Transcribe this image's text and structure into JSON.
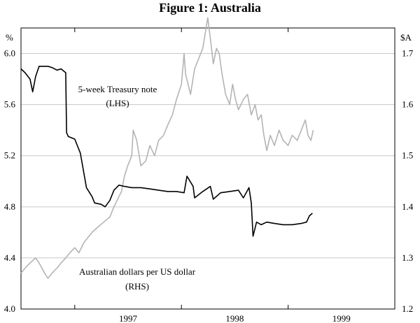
{
  "chart_data": {
    "type": "line",
    "title": "Figure 1: Australia",
    "left_axis": {
      "unit": "%",
      "ylim": [
        4.0,
        6.2
      ],
      "ticks": [
        "4.0",
        "4.4",
        "4.8",
        "5.2",
        "5.6",
        "6.0"
      ]
    },
    "right_axis": {
      "unit": "$A",
      "ylim": [
        1.2,
        1.75
      ],
      "ticks": [
        "1.2",
        "1.3",
        "1.4",
        "1.5",
        "1.6",
        "1.7"
      ]
    },
    "x_labels": [
      "1997",
      "1998",
      "1999"
    ],
    "x_range": [
      "1996-07",
      "2000-01"
    ],
    "grid": "horizontal",
    "annotations": [
      {
        "id": "tn",
        "lines": [
          "5-week Treasury note",
          "(LHS)"
        ]
      },
      {
        "id": "fx",
        "lines": [
          "Australian dollars per US dollar",
          "(RHS)"
        ]
      }
    ],
    "series": [
      {
        "name": "5-week Treasury note (LHS)",
        "axis": "left",
        "color": "#000000",
        "x": [
          "1996-07-01",
          "1996-07-15",
          "1996-08-01",
          "1996-08-10",
          "1996-08-20",
          "1996-09-01",
          "1996-09-15",
          "1996-10-01",
          "1996-10-15",
          "1996-11-01",
          "1996-11-15",
          "1996-12-01",
          "1996-12-04",
          "1996-12-10",
          "1997-01-01",
          "1997-01-20",
          "1997-02-10",
          "1997-03-01",
          "1997-03-10",
          "1997-04-01",
          "1997-04-15",
          "1997-05-01",
          "1997-05-15",
          "1997-06-01",
          "1997-06-20",
          "1997-07-15",
          "1997-08-15",
          "1997-09-15",
          "1997-10-15",
          "1997-11-15",
          "1997-12-15",
          "1998-01-10",
          "1998-01-20",
          "1998-02-10",
          "1998-02-15",
          "1998-03-15",
          "1998-04-10",
          "1998-04-20",
          "1998-05-15",
          "1998-06-15",
          "1998-07-15",
          "1998-08-01",
          "1998-08-20",
          "1998-08-28",
          "1998-09-03",
          "1998-09-15",
          "1998-10-01",
          "1998-10-20",
          "1998-11-15",
          "1998-12-15",
          "1999-01-15",
          "1999-02-15",
          "1999-03-05",
          "1999-03-15",
          "1999-03-25"
        ],
        "values": [
          5.88,
          5.85,
          5.8,
          5.7,
          5.82,
          5.9,
          5.9,
          5.9,
          5.89,
          5.87,
          5.88,
          5.85,
          5.38,
          5.35,
          5.33,
          5.22,
          4.95,
          4.88,
          4.83,
          4.82,
          4.8,
          4.85,
          4.93,
          4.97,
          4.96,
          4.95,
          4.95,
          4.94,
          4.93,
          4.92,
          4.92,
          4.91,
          5.04,
          4.96,
          4.87,
          4.92,
          4.96,
          4.86,
          4.91,
          4.92,
          4.93,
          4.87,
          4.95,
          4.83,
          4.57,
          4.68,
          4.66,
          4.68,
          4.67,
          4.66,
          4.66,
          4.67,
          4.68,
          4.73,
          4.75
        ]
      },
      {
        "name": "Australian dollars per US dollar (RHS)",
        "axis": "right",
        "color": "#b4b4b4",
        "x": [
          "1996-07-01",
          "1996-07-15",
          "1996-08-01",
          "1996-08-20",
          "1996-09-01",
          "1996-09-20",
          "1996-10-01",
          "1996-10-15",
          "1996-11-01",
          "1996-11-15",
          "1996-12-01",
          "1996-12-15",
          "1997-01-01",
          "1997-01-15",
          "1997-02-01",
          "1997-02-15",
          "1997-03-01",
          "1997-03-20",
          "1997-04-10",
          "1997-05-01",
          "1997-05-15",
          "1997-06-01",
          "1997-06-10",
          "1997-06-20",
          "1997-07-01",
          "1997-07-15",
          "1997-07-20",
          "1997-08-01",
          "1997-08-15",
          "1997-09-01",
          "1997-09-15",
          "1997-10-01",
          "1997-10-15",
          "1997-11-01",
          "1997-11-15",
          "1997-12-01",
          "1997-12-15",
          "1998-01-01",
          "1998-01-10",
          "1998-01-15",
          "1998-02-01",
          "1998-02-15",
          "1998-03-01",
          "1998-03-15",
          "1998-04-01",
          "1998-04-10",
          "1998-04-20",
          "1998-05-01",
          "1998-05-10",
          "1998-05-20",
          "1998-06-01",
          "1998-06-15",
          "1998-06-25",
          "1998-07-05",
          "1998-07-15",
          "1998-08-01",
          "1998-08-15",
          "1998-08-28",
          "1998-09-10",
          "1998-09-20",
          "1998-10-01",
          "1998-10-10",
          "1998-10-20",
          "1998-11-01",
          "1998-11-15",
          "1998-12-01",
          "1998-12-15",
          "1999-01-01",
          "1999-01-15",
          "1999-02-01",
          "1999-02-15",
          "1999-03-01",
          "1999-03-10",
          "1999-03-20",
          "1999-03-28"
        ],
        "values": [
          1.27,
          1.28,
          1.29,
          1.3,
          1.29,
          1.27,
          1.26,
          1.27,
          1.28,
          1.29,
          1.3,
          1.31,
          1.32,
          1.31,
          1.33,
          1.34,
          1.35,
          1.36,
          1.37,
          1.38,
          1.4,
          1.42,
          1.43,
          1.46,
          1.48,
          1.5,
          1.55,
          1.53,
          1.48,
          1.49,
          1.52,
          1.5,
          1.53,
          1.54,
          1.56,
          1.58,
          1.61,
          1.64,
          1.7,
          1.66,
          1.62,
          1.67,
          1.69,
          1.71,
          1.77,
          1.73,
          1.68,
          1.71,
          1.7,
          1.66,
          1.62,
          1.6,
          1.64,
          1.61,
          1.59,
          1.61,
          1.62,
          1.58,
          1.6,
          1.57,
          1.58,
          1.54,
          1.51,
          1.54,
          1.52,
          1.55,
          1.53,
          1.52,
          1.54,
          1.53,
          1.55,
          1.57,
          1.54,
          1.53,
          1.55
        ]
      }
    ]
  }
}
